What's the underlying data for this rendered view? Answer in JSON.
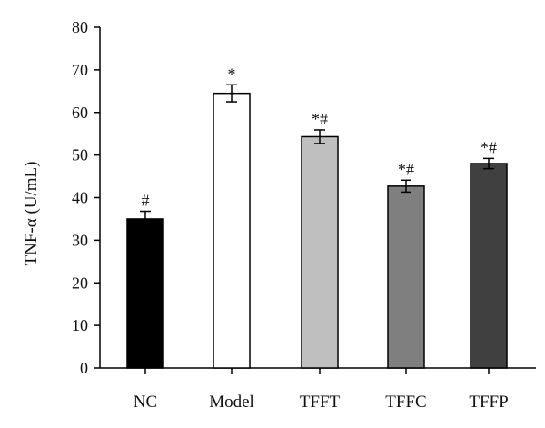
{
  "chart_data": {
    "type": "bar",
    "categories": [
      "NC",
      "Model",
      "TFFT",
      "TFFC",
      "TFFP"
    ],
    "values": [
      35,
      64.5,
      54.3,
      42.7,
      48
    ],
    "errors": [
      1.8,
      2.0,
      1.6,
      1.4,
      1.2
    ],
    "annotations": [
      "#",
      "*",
      "*#",
      "*#",
      "*#"
    ],
    "bar_fill_colors": [
      "#000000",
      "#ffffff",
      "#bfbfbf",
      "#7f7f7f",
      "#404040"
    ],
    "bar_stroke_color": "#000000",
    "title": "",
    "xlabel": "",
    "ylabel": "TNF-α (U/mL)",
    "ylim": [
      0,
      80
    ],
    "yticks": [
      "0",
      "10",
      "20",
      "30",
      "40",
      "50",
      "60",
      "70",
      "80"
    ],
    "grid": false,
    "legend": "none"
  }
}
